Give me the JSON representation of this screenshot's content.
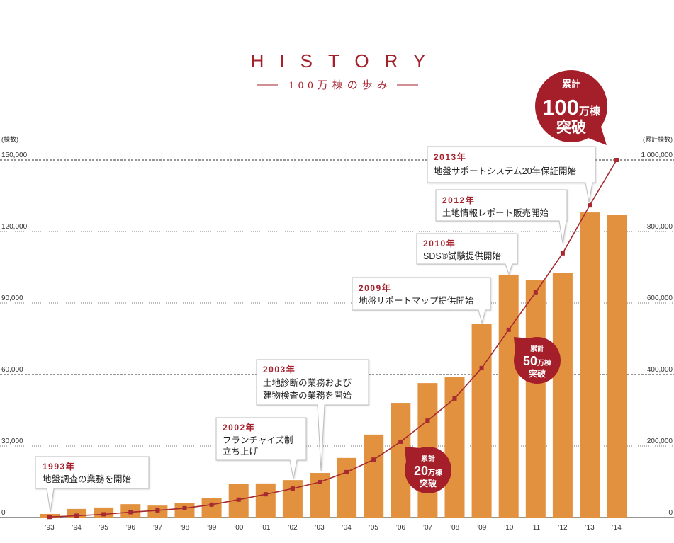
{
  "colors": {
    "accent": "#a4212c",
    "bar": "#e2913f",
    "line": "#a62a30",
    "badge": "#a51f2a"
  },
  "chart_data": {
    "type": "bar",
    "title": "HISTORY",
    "subtitle": "100万棟の歩み",
    "ylabel": "(棟数)",
    "y2label": "(累計棟数)",
    "categories": [
      "’93",
      "’94",
      "’95",
      "’96",
      "’97",
      "’98",
      "’99",
      "’00",
      "’01",
      "’02",
      "’03",
      "’04",
      "’05",
      "’06",
      "’07",
      "’08",
      "’09",
      "’10",
      "’11",
      "’12",
      "’13",
      "’14"
    ],
    "yticks": [
      "150,000",
      "120,000",
      "90,000",
      "60,000",
      "30,000",
      "0"
    ],
    "y2ticks": [
      "1,000,000",
      "800,000",
      "600,000",
      "400,000",
      "200,000",
      "0"
    ],
    "ylim": [
      0,
      150000
    ],
    "y2lim": [
      0,
      1000000
    ],
    "grid": true,
    "series": [
      {
        "type": "bar",
        "axis": "left",
        "color": "#e2913f",
        "values": [
          1500,
          3600,
          4200,
          5600,
          5000,
          6200,
          8300,
          14000,
          14300,
          15700,
          18700,
          25000,
          34800,
          48100,
          56400,
          58800,
          81100,
          101900,
          99500,
          102500,
          128000,
          127100
        ]
      },
      {
        "type": "line",
        "axis": "right",
        "color": "#a62a30",
        "marker": "square",
        "values": [
          1500,
          5000,
          9000,
          15000,
          20000,
          26000,
          36000,
          50000,
          65000,
          81000,
          99000,
          127000,
          162000,
          212000,
          271000,
          333000,
          418000,
          525000,
          630000,
          739000,
          873000,
          1000000
        ]
      }
    ],
    "annotations": [
      {
        "year": "1993年",
        "lines": [
          "地盤調査の業務を開始"
        ]
      },
      {
        "year": "2002年",
        "lines": [
          "フランチャイズ制",
          "立ち上げ"
        ]
      },
      {
        "year": "2003年",
        "lines": [
          "土地診断の業務および",
          "建物検査の業務を開始"
        ]
      },
      {
        "year": "2009年",
        "lines": [
          "地盤サポートマップ提供開始"
        ]
      },
      {
        "year": "2010年",
        "lines": [
          "SDS®試験提供開始"
        ]
      },
      {
        "year": "2012年",
        "lines": [
          "土地情報レポート販売開始"
        ]
      },
      {
        "year": "2013年",
        "lines": [
          "地盤サポートシステム20年保証開始"
        ]
      }
    ],
    "milestones": [
      {
        "label": "累計",
        "number": "20",
        "unit": "万棟",
        "action": "突破"
      },
      {
        "label": "累計",
        "number": "50",
        "unit": "万棟",
        "action": "突破"
      },
      {
        "label": "累計",
        "number": "100",
        "unit": "万棟",
        "action": "突破"
      }
    ]
  }
}
